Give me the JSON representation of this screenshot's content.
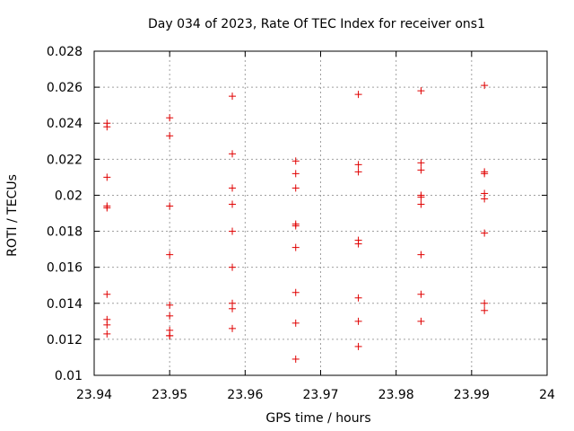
{
  "chart_data": {
    "type": "scatter",
    "title": "Day 034 of 2023, Rate Of TEC Index for receiver ons1",
    "xlabel": "GPS time / hours",
    "ylabel": "ROTI / TECUs",
    "xlim": [
      23.94,
      24.0
    ],
    "ylim": [
      0.01,
      0.028
    ],
    "xticks": [
      23.94,
      23.95,
      23.96,
      23.97,
      23.98,
      23.99,
      24.0
    ],
    "xtick_labels": [
      "23.94",
      "23.95",
      "23.96",
      "23.97",
      "23.98",
      "23.99",
      "24"
    ],
    "yticks": [
      0.01,
      0.012,
      0.014,
      0.016,
      0.018,
      0.02,
      0.022,
      0.024,
      0.026,
      0.028
    ],
    "ytick_labels": [
      "0.01",
      "0.012",
      "0.014",
      "0.016",
      "0.018",
      "0.02",
      "0.022",
      "0.024",
      "0.026",
      "0.028"
    ],
    "grid": true,
    "marker": "+",
    "color": "#e00000",
    "series": [
      {
        "name": "ons1",
        "x": [
          23.9417,
          23.9417,
          23.9417,
          23.9417,
          23.9417,
          23.9417,
          23.9417,
          23.9417,
          23.9417,
          23.95,
          23.95,
          23.95,
          23.95,
          23.95,
          23.95,
          23.95,
          23.95,
          23.95,
          23.9583,
          23.9583,
          23.9583,
          23.9583,
          23.9583,
          23.9583,
          23.9583,
          23.9583,
          23.9583,
          23.9667,
          23.9667,
          23.9667,
          23.9667,
          23.9667,
          23.9667,
          23.9667,
          23.9667,
          23.9667,
          23.975,
          23.975,
          23.975,
          23.975,
          23.975,
          23.975,
          23.975,
          23.975,
          23.9833,
          23.9833,
          23.9833,
          23.9833,
          23.9833,
          23.9833,
          23.9833,
          23.9833,
          23.9833,
          23.9917,
          23.9917,
          23.9917,
          23.9917,
          23.9917,
          23.9917,
          23.9917,
          23.9917
        ],
        "y": [
          0.024,
          0.0238,
          0.021,
          0.0194,
          0.0193,
          0.0145,
          0.0131,
          0.0128,
          0.0123,
          0.0243,
          0.0233,
          0.0194,
          0.0167,
          0.0139,
          0.0133,
          0.0125,
          0.0122,
          0.0122,
          0.0255,
          0.0223,
          0.0204,
          0.0195,
          0.018,
          0.016,
          0.014,
          0.0137,
          0.0126,
          0.0219,
          0.0212,
          0.0204,
          0.0184,
          0.0183,
          0.0171,
          0.0146,
          0.0129,
          0.0109,
          0.0256,
          0.0217,
          0.0213,
          0.0175,
          0.0173,
          0.0143,
          0.013,
          0.0116,
          0.0258,
          0.0218,
          0.0214,
          0.02,
          0.0199,
          0.0195,
          0.0167,
          0.0145,
          0.013,
          0.0261,
          0.0213,
          0.0212,
          0.0201,
          0.0198,
          0.0179,
          0.014,
          0.0136
        ]
      }
    ]
  }
}
